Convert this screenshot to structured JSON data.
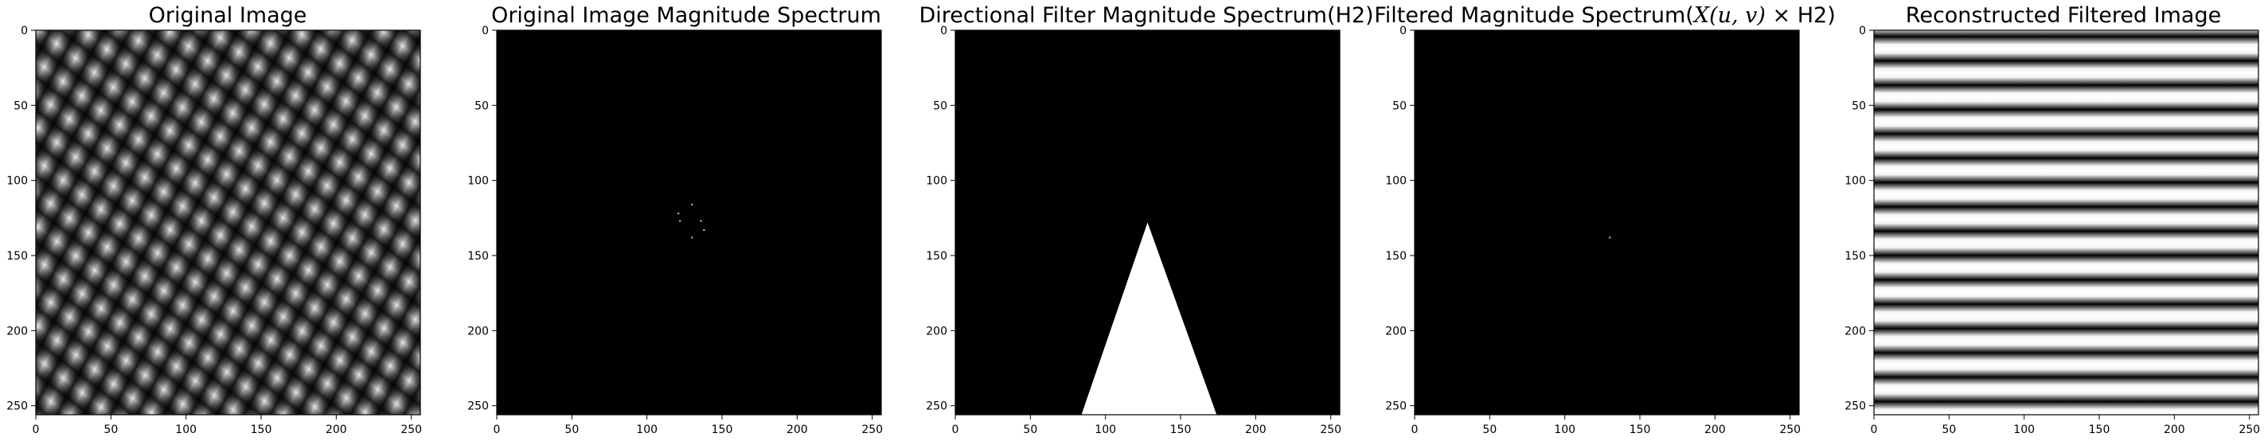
{
  "figure": {
    "panels": [
      {
        "id": "original",
        "title": "Original Image",
        "image": "two overlapping oblique cosine gratings forming a blob lattice",
        "x_ticks": [
          "0",
          "50",
          "100",
          "150",
          "200",
          "250"
        ],
        "y_ticks": [
          "0",
          "50",
          "100",
          "150",
          "200",
          "250"
        ],
        "extent": [
          0,
          256
        ]
      },
      {
        "id": "spectrum",
        "title": "Original Image Magnitude Spectrum",
        "image": "black field with a few bright frequency points near the centre",
        "points": [
          [
            130,
            116
          ],
          [
            121,
            122
          ],
          [
            122,
            127
          ],
          [
            136,
            127
          ],
          [
            138,
            133
          ],
          [
            130,
            138
          ]
        ],
        "x_ticks": [
          "0",
          "50",
          "100",
          "150",
          "200",
          "250"
        ],
        "y_ticks": [
          "0",
          "50",
          "100",
          "150",
          "200",
          "250"
        ],
        "extent": [
          0,
          256
        ]
      },
      {
        "id": "filter",
        "title": "Directional Filter Magnitude Spectrum(H2)",
        "image": "white triangle on black",
        "triangle": [
          [
            128,
            128
          ],
          [
            84,
            256
          ],
          [
            174,
            256
          ]
        ],
        "x_ticks": [
          "0",
          "50",
          "100",
          "150",
          "200",
          "250"
        ],
        "y_ticks": [
          "0",
          "50",
          "100",
          "150",
          "200",
          "250"
        ],
        "extent": [
          0,
          256
        ]
      },
      {
        "id": "filtered",
        "title_prefix": "Filtered Magnitude Spectrum(",
        "title_math": "X(u, v)",
        "title_op": " × ",
        "title_suffix": "H2)",
        "image": "black field with a single bright point",
        "points": [
          [
            130,
            138
          ]
        ],
        "x_ticks": [
          "0",
          "50",
          "100",
          "150",
          "200",
          "250"
        ],
        "y_ticks": [
          "0",
          "50",
          "100",
          "150",
          "200",
          "250"
        ],
        "extent": [
          0,
          256
        ]
      },
      {
        "id": "reconstructed",
        "title": "Reconstructed Filtered Image",
        "image": "horizontal sinusoidal stripes",
        "stripe_period": 16.2,
        "x_ticks": [
          "0",
          "50",
          "100",
          "150",
          "200",
          "250"
        ],
        "y_ticks": [
          "0",
          "50",
          "100",
          "150",
          "200",
          "250"
        ],
        "extent": [
          0,
          256
        ]
      }
    ]
  }
}
